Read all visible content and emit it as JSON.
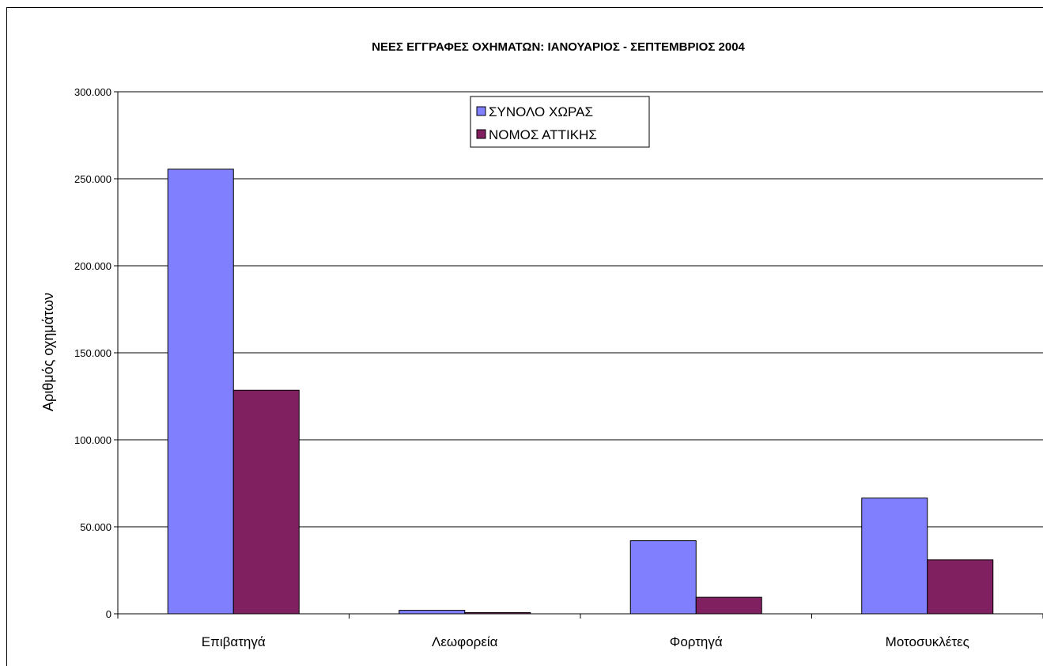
{
  "chart_data": {
    "type": "bar",
    "title": "ΝΕΕΣ ΕΓΓΡΑΦΕΣ ΟΧΗΜΑΤΩΝ:  ΙΑΝΟΥΑΡΙΟΣ - ΣΕΠΤΕΜΒΡΙΟΣ 2004",
    "xlabel": "",
    "ylabel": "Αριθμός οχημάτων",
    "categories": [
      "Επιβατηγά",
      "Λεωφορεία",
      "Φορτηγά",
      "Μοτοσυκλέτες"
    ],
    "series": [
      {
        "name": "ΣΥΝΟΛΟ ΧΩΡΑΣ",
        "color": "#8080FF",
        "values": [
          255500,
          2000,
          42000,
          66500
        ]
      },
      {
        "name": "ΝΟΜΟΣ ΑΤΤΙΚΗΣ",
        "color": "#802060",
        "values": [
          128500,
          700,
          9500,
          31000
        ]
      }
    ],
    "ylim": [
      0,
      300000
    ],
    "yticks": [
      0,
      50000,
      100000,
      150000,
      200000,
      250000,
      300000
    ],
    "ytick_labels": [
      "0",
      "50.000",
      "100.000",
      "150.000",
      "200.000",
      "250.000",
      "300.000"
    ],
    "grid": true,
    "legend_position": "top-center"
  }
}
